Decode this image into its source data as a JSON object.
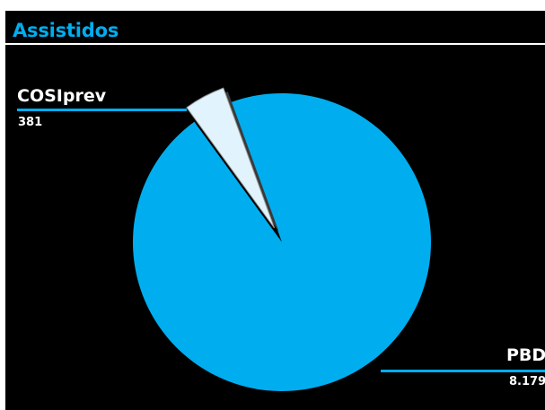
{
  "chart_data": {
    "type": "pie",
    "title": "Assistidos",
    "categories": [
      "PBD",
      "COSIprev"
    ],
    "values": [
      8179,
      381
    ],
    "value_labels": [
      "8.179",
      "381"
    ],
    "slice_colors": [
      "#00aeef",
      "#e1f4fd"
    ],
    "exploded_slice": "COSIprev"
  },
  "colors": {
    "background": "#000000",
    "accent": "#00aeef",
    "text": "#ffffff"
  }
}
